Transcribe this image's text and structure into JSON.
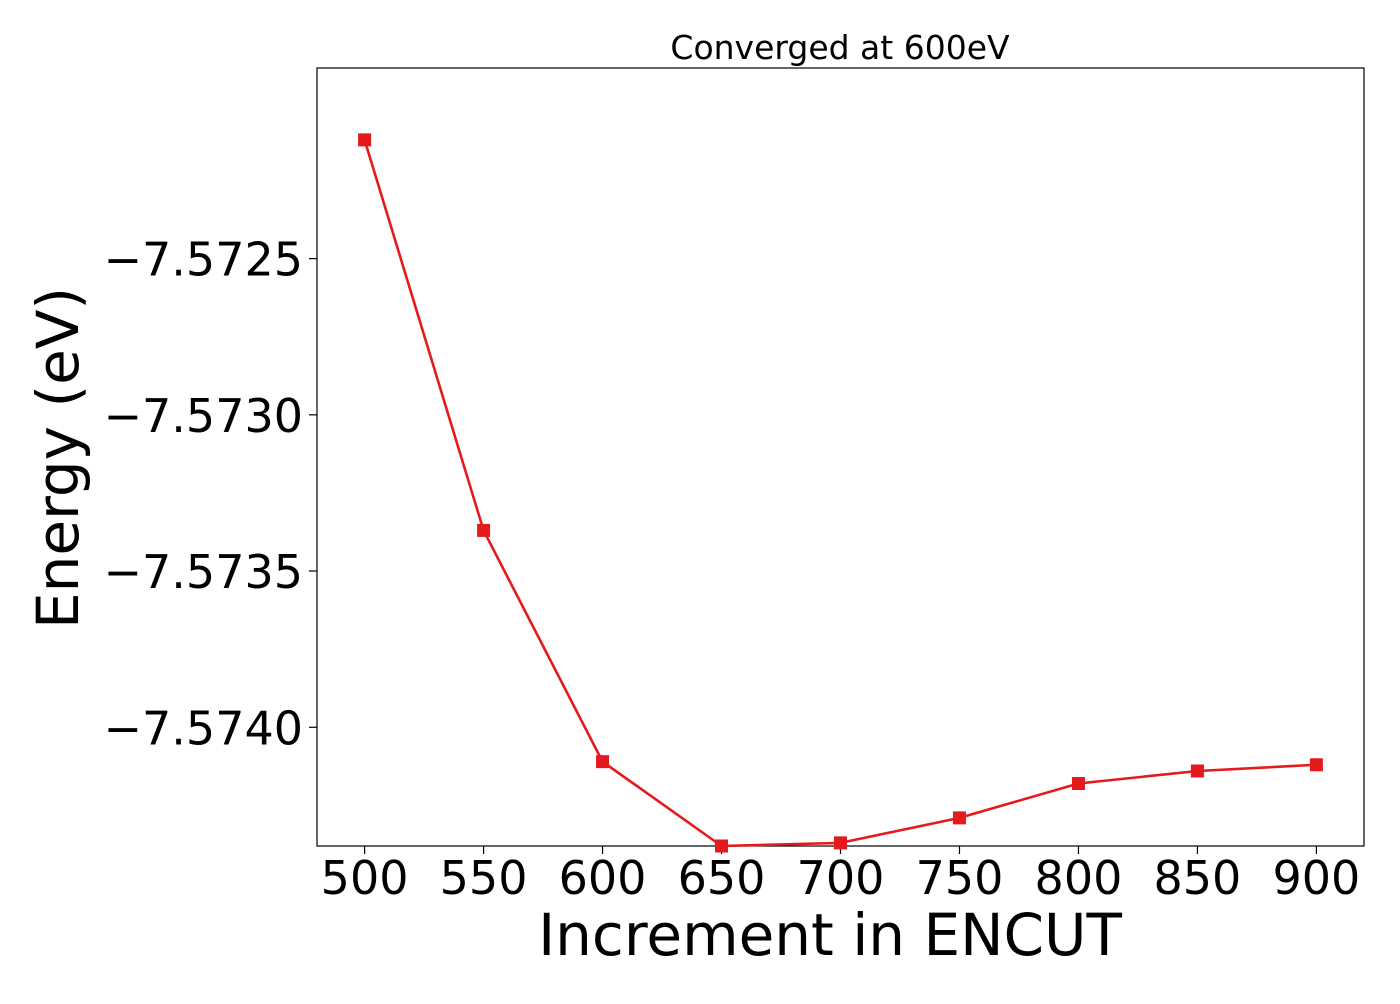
{
  "chart_data": {
    "type": "line",
    "title": "Converged at 600eV",
    "xlabel": "Increment in ENCUT",
    "ylabel": "Energy (eV)",
    "x": [
      500,
      550,
      600,
      650,
      700,
      750,
      800,
      850,
      900
    ],
    "xticks": [
      "500",
      "550",
      "600",
      "650",
      "700",
      "750",
      "800",
      "850",
      "900"
    ],
    "yticks": [
      -7.5725,
      -7.573,
      -7.5735,
      -7.574
    ],
    "ytick_labels": [
      "−7.5725",
      "−7.5730",
      "−7.5735",
      "−7.5740"
    ],
    "xlim": [
      480,
      920
    ],
    "ylim": [
      -7.57438,
      -7.57189
    ],
    "grid": false,
    "series": [
      {
        "values": [
          -7.57212,
          -7.57337,
          -7.57411,
          -7.57438,
          -7.57437,
          -7.57429,
          -7.57418,
          -7.57414,
          -7.57412
        ],
        "color": "#e41a1c",
        "marker": "square"
      }
    ]
  }
}
